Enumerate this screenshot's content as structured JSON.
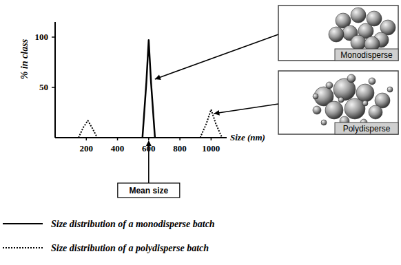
{
  "chart_data": {
    "type": "line",
    "x": [
      150,
      180,
      210,
      240,
      270,
      560,
      585,
      600,
      615,
      640,
      930,
      970,
      1000,
      1030,
      1070
    ],
    "xlim": [
      0,
      1100
    ],
    "xticks": [
      200,
      400,
      600,
      800,
      1000
    ],
    "ylim": [
      0,
      115
    ],
    "yticks": [
      50,
      100
    ],
    "x_label": "Size (nm)",
    "y_label": "% in class",
    "series": [
      {
        "name": "Size distribution of a monodisperse batch",
        "color": "#000000",
        "line_style": "solid",
        "values": [
          null,
          null,
          null,
          null,
          null,
          0,
          55,
          97,
          55,
          0,
          null,
          null,
          null,
          null,
          null
        ]
      },
      {
        "name": "Size distribution of a polydisperse batch",
        "color": "#000000",
        "line_style": "dotted",
        "values": [
          0,
          10,
          17,
          9,
          0,
          null,
          null,
          null,
          null,
          null,
          0,
          14,
          28,
          14,
          0
        ]
      }
    ],
    "annotations": [
      {
        "text": "Mean size",
        "x": 600
      }
    ],
    "panels": [
      {
        "label": "Monodisperse"
      },
      {
        "label": "Polydisperse"
      }
    ],
    "legend": "bottom",
    "grid": false
  }
}
